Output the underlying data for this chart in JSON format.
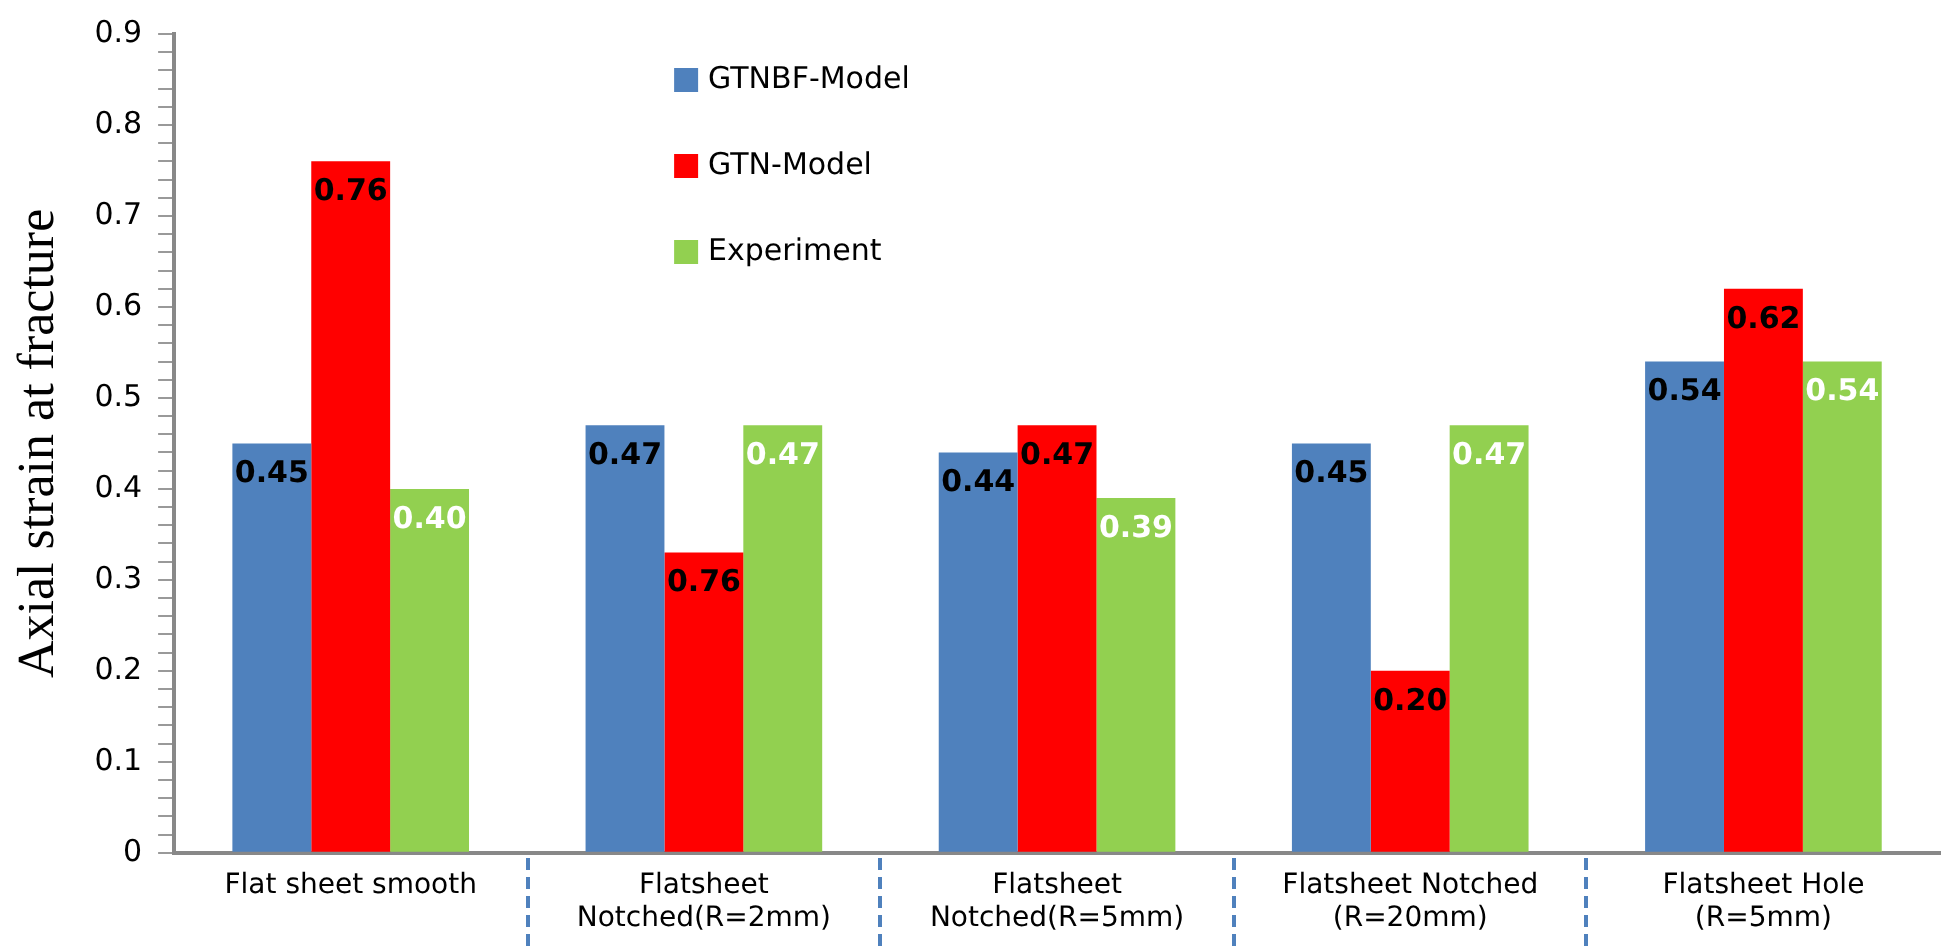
{
  "chart_data": {
    "type": "bar",
    "ylabel": "Axial strain at fracture",
    "categories": [
      "Flat sheet smooth",
      "Flatsheet Notched(R=2mm)",
      "Flatsheet Notched(R=5mm)",
      "Flatsheet Notched (R=20mm)",
      "Flatsheet Hole (R=5mm)"
    ],
    "series": [
      {
        "name": "GTNBF-Model",
        "color": "#4f81bd",
        "values": [
          0.45,
          0.47,
          0.44,
          0.45,
          0.54
        ],
        "value_labels": [
          "0.45",
          "0.47",
          "0.44",
          "0.45",
          "0.54"
        ]
      },
      {
        "name": "GTN-Model",
        "color": "#ff0000",
        "values": [
          0.76,
          0.33,
          0.47,
          0.2,
          0.62
        ],
        "value_labels": [
          "0.76",
          null,
          "0.47",
          "0.20",
          "0.62"
        ]
      },
      {
        "name": "Experiment",
        "color": "#92d050",
        "values": [
          0.4,
          0.47,
          0.39,
          0.47,
          0.54
        ],
        "value_labels": [
          "0.40",
          "0.47",
          "0.39",
          "0.47",
          "0.54"
        ]
      }
    ],
    "ylim": [
      0,
      0.9
    ],
    "yticks": [
      0,
      {
        "value": 0.02,
        "label": null
      },
      {
        "value": 0.04,
        "label": null
      },
      {
        "value": 0.06,
        "label": null
      },
      {
        "value": 0.08,
        "label": null
      },
      0.1,
      {
        "value": 0.12,
        "label": null
      },
      {
        "value": 0.14,
        "label": null
      },
      {
        "value": 0.16,
        "label": null
      },
      {
        "value": 0.18,
        "label": null
      },
      0.2,
      {
        "value": 0.22,
        "label": null
      },
      {
        "value": 0.24,
        "label": null
      },
      {
        "value": 0.26,
        "label": null
      },
      {
        "value": 0.28,
        "label": null
      },
      0.3,
      {
        "value": 0.32,
        "label": null
      },
      {
        "value": 0.34,
        "label": null
      },
      {
        "value": 0.36,
        "label": null
      },
      {
        "value": 0.38,
        "label": null
      },
      0.4,
      {
        "value": 0.42,
        "label": null
      },
      {
        "value": 0.44,
        "label": null
      },
      {
        "value": 0.46,
        "label": null
      },
      {
        "value": 0.48,
        "label": null
      },
      0.5,
      {
        "value": 0.52,
        "label": null
      },
      {
        "value": 0.54,
        "label": null
      },
      {
        "value": 0.56,
        "label": null
      },
      {
        "value": 0.58,
        "label": null
      },
      0.6,
      {
        "value": 0.62,
        "label": null
      },
      {
        "value": 0.64,
        "label": null
      },
      {
        "value": 0.66,
        "label": null
      },
      {
        "value": 0.68,
        "label": null
      },
      0.7,
      {
        "value": 0.72,
        "label": null
      },
      {
        "value": 0.74,
        "label": null
      },
      {
        "value": 0.76,
        "label": null
      },
      {
        "value": 0.78,
        "label": null
      },
      0.8,
      {
        "value": 0.82,
        "label": null
      },
      {
        "value": 0.84,
        "label": null
      },
      {
        "value": 0.86,
        "label": null
      },
      {
        "value": 0.88,
        "label": null
      },
      0.9
    ],
    "annotations": [
      {
        "text": "0.76",
        "x": "Flatsheet Notched(R=2mm)",
        "y": 0.33
      }
    ],
    "grid": false,
    "legend": "top"
  }
}
